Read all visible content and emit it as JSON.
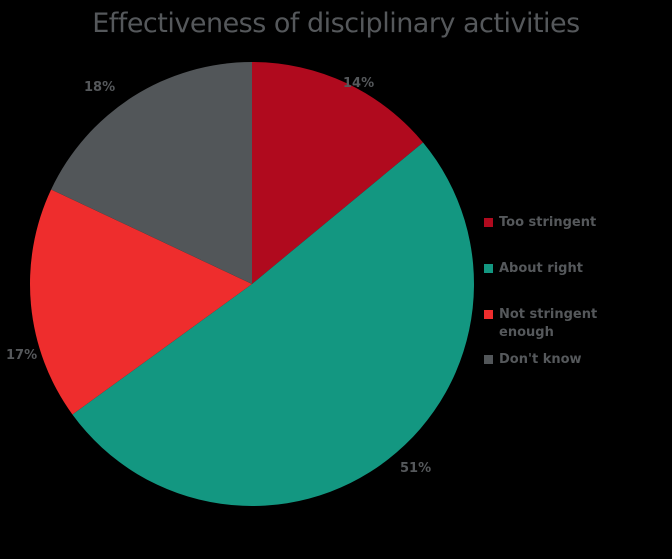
{
  "title": "Effectiveness of disciplinary activities",
  "chart_data": {
    "type": "pie",
    "title": "Effectiveness of disciplinary activities",
    "categories": [
      "Too stringent",
      "About right",
      "Not stringent enough",
      "Don't know"
    ],
    "values": [
      14,
      51,
      17,
      18
    ],
    "labels": [
      "14%",
      "51%",
      "17%",
      "18%"
    ],
    "colors": [
      "#b00a1e",
      "#139781",
      "#ee2d2d",
      "#525659"
    ],
    "start_angle": "12 o'clock, clockwise",
    "legend_position": "right"
  },
  "legend": [
    {
      "label": "Too stringent",
      "color": "#b00a1e"
    },
    {
      "label": "About right",
      "color": "#139781"
    },
    {
      "label": "Not stringent enough",
      "line1": "Not stringent",
      "line2": "enough",
      "color": "#ee2d2d"
    },
    {
      "label": "Don't know",
      "color": "#525659"
    }
  ]
}
